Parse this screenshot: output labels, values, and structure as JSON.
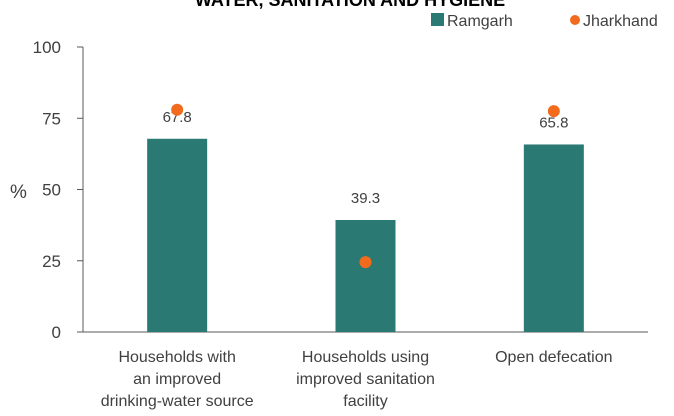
{
  "chart_data": {
    "type": "bar",
    "title": "WATER, SANITATION AND HYGIENE",
    "ylabel": "%",
    "ylim": [
      0,
      100
    ],
    "yticks": [
      0,
      25,
      50,
      75,
      100
    ],
    "categories": [
      [
        "Households with",
        "an improved",
        "drinking-water source"
      ],
      [
        "Households using",
        "improved sanitation",
        "facility"
      ],
      [
        "Open defecation"
      ]
    ],
    "series": [
      {
        "name": "Ramgarh",
        "type": "bar",
        "color": "#2A7A73",
        "values": [
          67.8,
          39.3,
          65.8
        ],
        "labels": [
          "67.8",
          "39.3",
          "65.8"
        ]
      },
      {
        "name": "Jharkhand",
        "type": "scatter",
        "color": "#F26B1D",
        "values": [
          78,
          24.5,
          77.5
        ]
      }
    ],
    "legend": "top-right"
  }
}
